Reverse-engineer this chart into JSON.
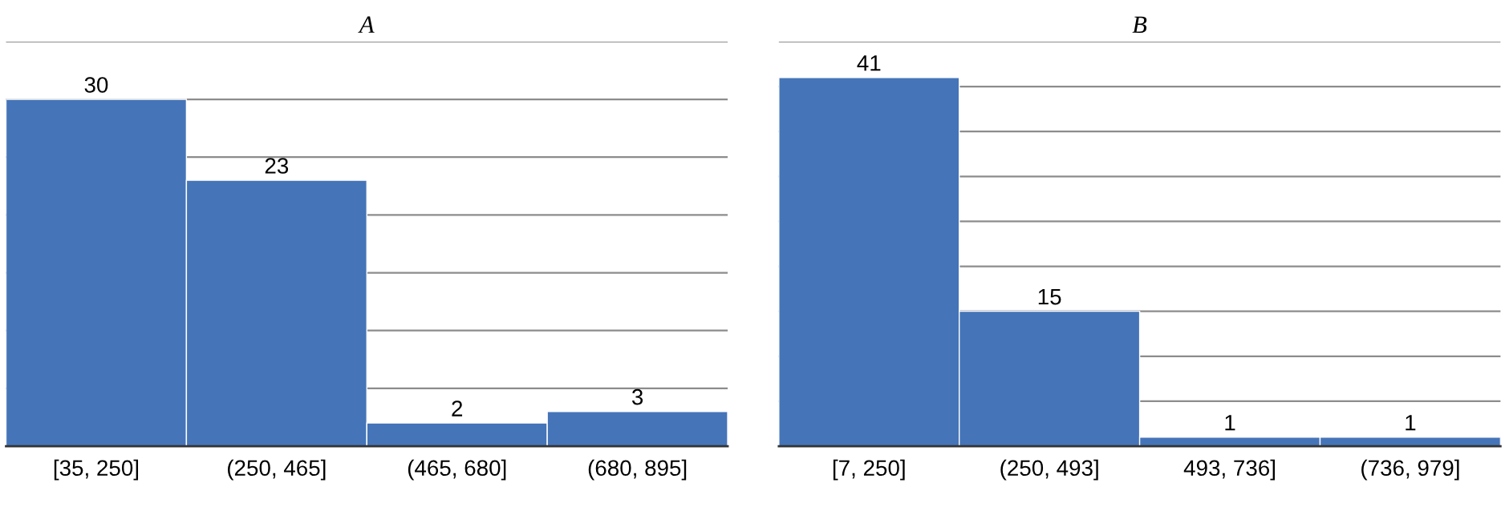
{
  "chart_data": [
    {
      "type": "bar",
      "title": "A",
      "categories": [
        "[35, 250]",
        "(250, 465]",
        "(465, 680]",
        "(680, 895]"
      ],
      "values": [
        30,
        23,
        2,
        3
      ],
      "color": "#4574b8",
      "ylim": [
        0,
        35
      ],
      "yticks": [
        {
          "value": 0,
          "label": null
        },
        {
          "value": 5,
          "label": null
        },
        {
          "value": 10,
          "label": null
        },
        {
          "value": 15,
          "label": null
        },
        {
          "value": 20,
          "label": null
        },
        {
          "value": 25,
          "label": null
        },
        {
          "value": 30,
          "label": null
        },
        {
          "value": 35,
          "label": null
        }
      ],
      "grid": "y",
      "data_labels": true,
      "tick_labels": "x"
    },
    {
      "type": "bar",
      "title": "B",
      "categories": [
        "[7, 250]",
        "(250, 493]",
        "493, 736]",
        "(736, 979]"
      ],
      "values": [
        41,
        15,
        1,
        1
      ],
      "color": "#4574b8",
      "ylim": [
        0,
        45
      ],
      "yticks": [
        {
          "value": 0,
          "label": null
        },
        {
          "value": 5,
          "label": null
        },
        {
          "value": 10,
          "label": null
        },
        {
          "value": 15,
          "label": null
        },
        {
          "value": 20,
          "label": null
        },
        {
          "value": 25,
          "label": null
        },
        {
          "value": 30,
          "label": null
        },
        {
          "value": 35,
          "label": null
        },
        {
          "value": 40,
          "label": null
        },
        {
          "value": 45,
          "label": null
        }
      ],
      "grid": "y",
      "data_labels": true,
      "tick_labels": "x"
    }
  ]
}
